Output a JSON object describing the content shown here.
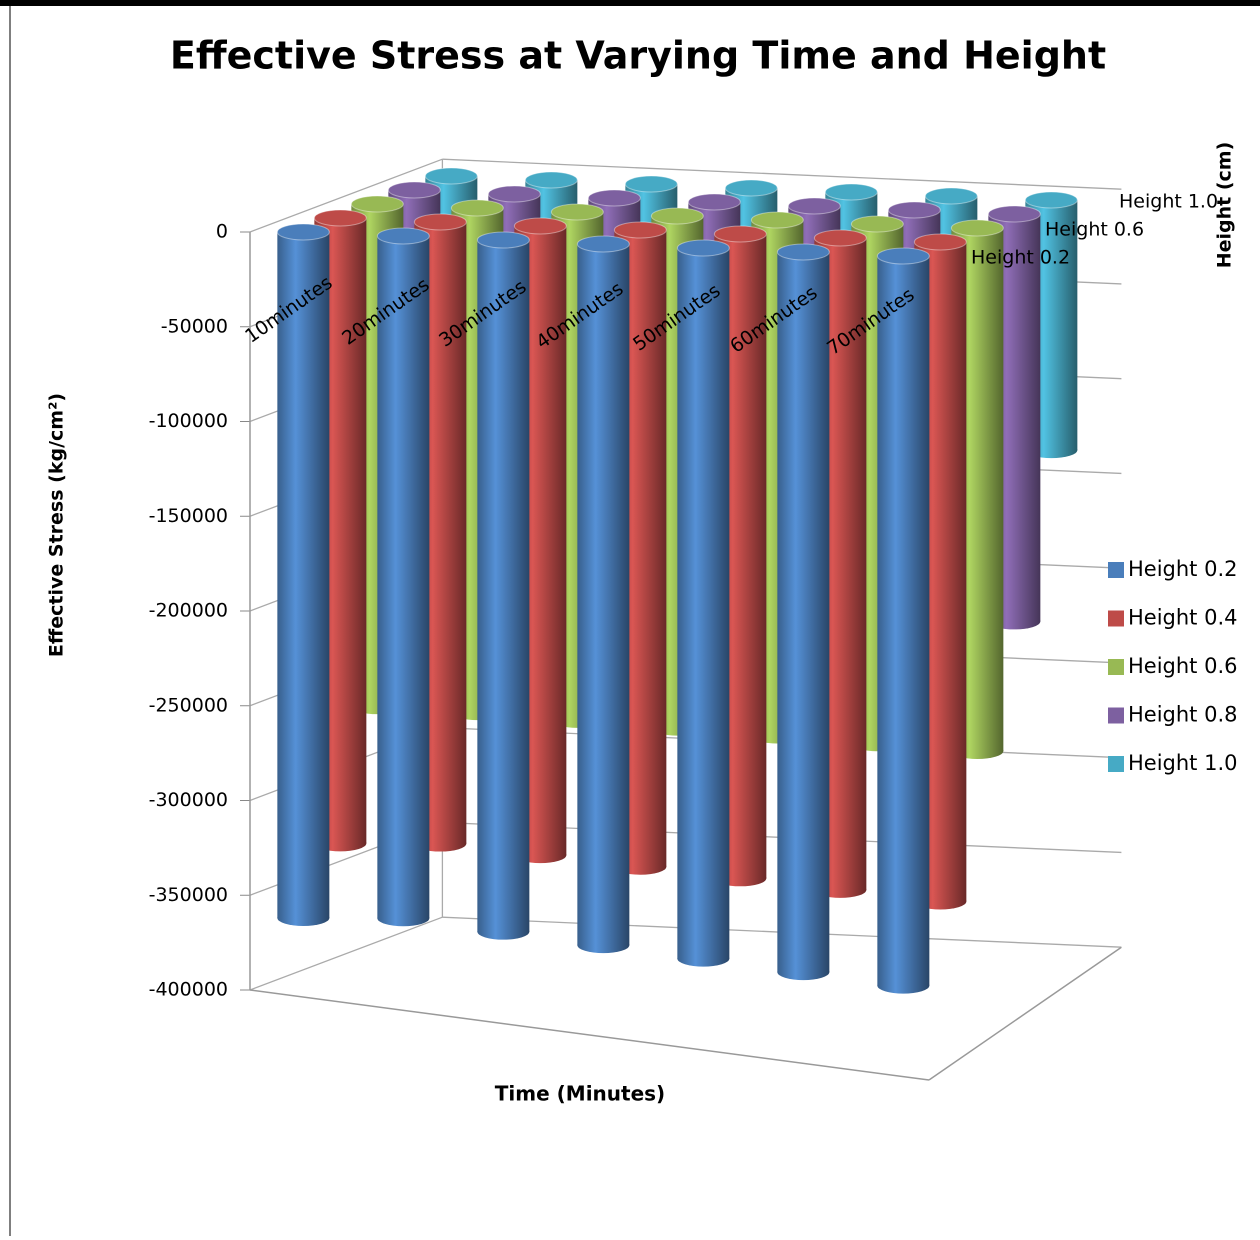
{
  "chart_data": {
    "type": "bar3d",
    "title": "Effective Stress at Varying Time and Height",
    "x_label": "Time (Minutes)",
    "y_label": "Effective Stress (kg/cm²)",
    "z_label": "Height (cm)",
    "categories": [
      "10minutes",
      "20minutes",
      "30minutes",
      "40minutes",
      "50minutes",
      "60minutes",
      "70minutes"
    ],
    "depth_labels": [
      "Height 1.0",
      "Height 0.6",
      "Height 0.2"
    ],
    "series": [
      {
        "name": "Height 0.2",
        "color": "#4a7ebb",
        "values": [
          -362000,
          -360000,
          -365000,
          -370000,
          -375000,
          -380000,
          -385000
        ]
      },
      {
        "name": "Height 0.4",
        "color": "#be4b48",
        "values": [
          -330000,
          -328000,
          -332000,
          -336000,
          -340000,
          -344000,
          -348000
        ]
      },
      {
        "name": "Height 0.6",
        "color": "#98b954",
        "values": [
          -265000,
          -266000,
          -268000,
          -270000,
          -272000,
          -274000,
          -276000
        ]
      },
      {
        "name": "Height 0.8",
        "color": "#7d60a0",
        "values": [
          -200000,
          -202000,
          -205000,
          -207000,
          -210000,
          -212000,
          -215000
        ]
      },
      {
        "name": "Height 1.0",
        "color": "#46aac5",
        "values": [
          -120000,
          -122000,
          -124000,
          -126000,
          -128000,
          -130000,
          -132000
        ]
      }
    ],
    "ylim": [
      -400000,
      0
    ],
    "yticks": [
      0,
      -50000,
      -100000,
      -150000,
      -200000,
      -250000,
      -300000,
      -350000,
      -400000
    ],
    "grid": true
  }
}
